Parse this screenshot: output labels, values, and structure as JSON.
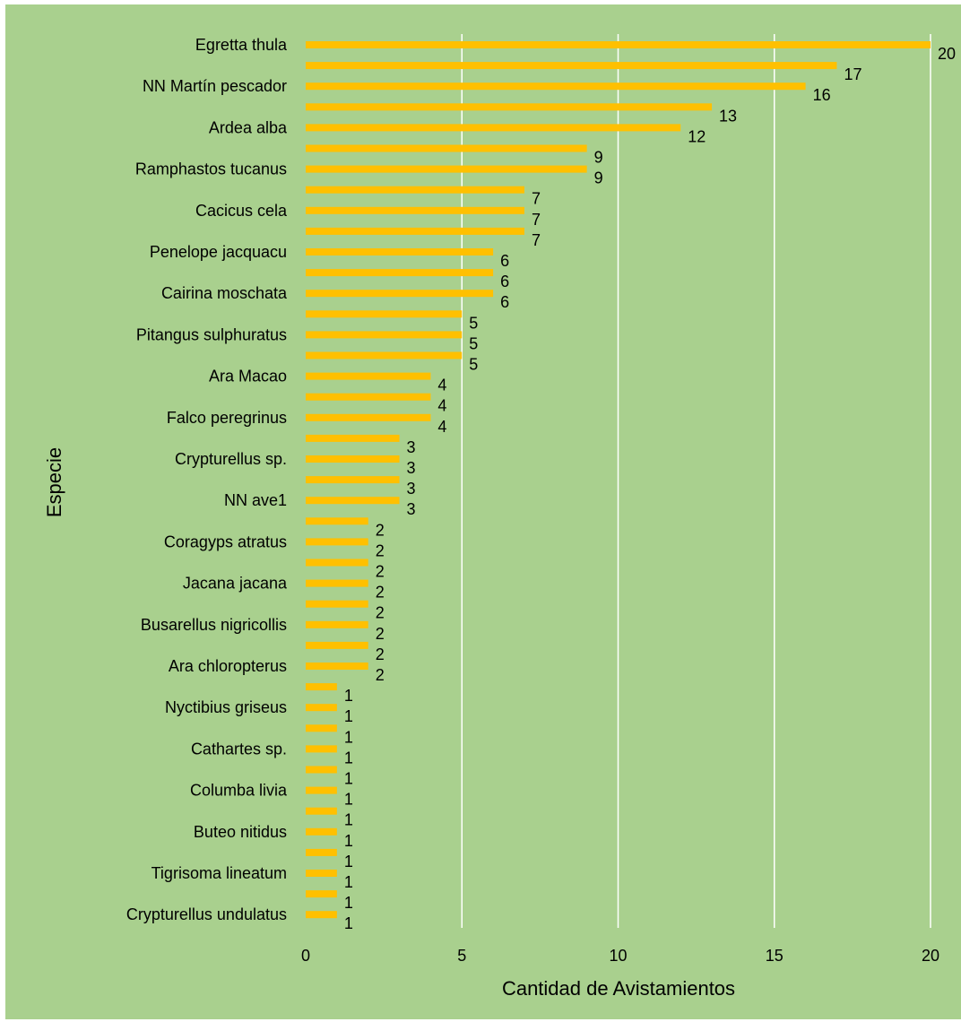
{
  "chart_data": {
    "type": "bar",
    "orientation": "horizontal",
    "xlabel": "Cantidad de Avistamientos",
    "ylabel": "Especie",
    "xlim": [
      0,
      20
    ],
    "xticks": [
      0,
      5,
      10,
      15,
      20
    ],
    "grid": true,
    "legend": "none",
    "colors": {
      "bar": "#ffc000",
      "background": "#a9d08e",
      "grid": "#ffffff"
    },
    "categories": [
      "Egretta thula",
      "",
      "NN Martín pescador",
      "",
      "Ardea alba",
      "",
      "Ramphastos tucanus",
      "",
      "Cacicus cela",
      "",
      "Penelope jacquacu",
      "",
      "Cairina moschata",
      "",
      "Pitangus sulphuratus",
      "",
      "Ara Macao",
      "",
      "Falco peregrinus",
      "",
      "Crypturellus sp.",
      "",
      "NN ave1",
      "",
      "Coragyps atratus",
      "",
      "Jacana jacana",
      "",
      "Busarellus nigricollis",
      "",
      "Ara chloropterus",
      "",
      "Nyctibius griseus",
      "",
      "Cathartes sp.",
      "",
      "Columba livia",
      "",
      "Buteo nitidus",
      "",
      "Tigrisoma lineatum",
      "",
      "Crypturellus undulatus"
    ],
    "values": [
      20,
      17,
      16,
      13,
      12,
      9,
      9,
      7,
      7,
      7,
      6,
      6,
      6,
      5,
      5,
      5,
      4,
      4,
      4,
      3,
      3,
      3,
      3,
      2,
      2,
      2,
      2,
      2,
      2,
      2,
      2,
      1,
      1,
      1,
      1,
      1,
      1,
      1,
      1,
      1,
      1,
      1,
      1
    ]
  }
}
